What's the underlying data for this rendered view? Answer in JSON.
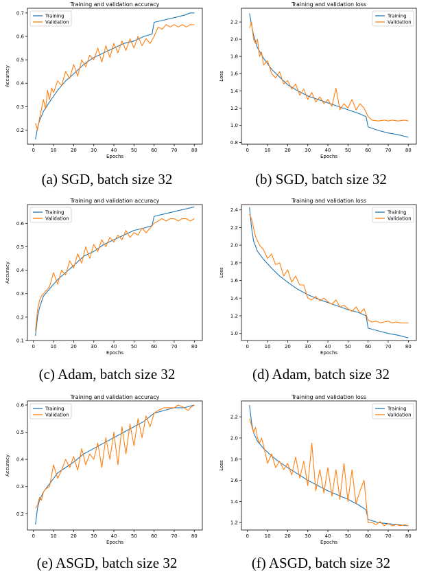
{
  "colors": {
    "training": "#1f77b4",
    "validation": "#ff7f0e"
  },
  "captions": [
    "(a) SGD, batch size 32",
    "(b) SGD, batch size 32",
    "(c) Adam, batch size 32",
    "(d) Adam, batch size 32",
    "(e) ASGD, batch size 32",
    "(f) ASGD, batch size 32"
  ],
  "chart_data": [
    {
      "type": "line",
      "title": "Training and validation accuracy",
      "xlabel": "Epochs",
      "ylabel": "Accuracy",
      "xlim": [
        -3,
        84
      ],
      "ylim": [
        0.14,
        0.72
      ],
      "xticks": [
        0,
        10,
        20,
        30,
        40,
        50,
        60,
        70,
        80
      ],
      "yticks": [
        0.2,
        0.3,
        0.4,
        0.5,
        0.6,
        0.7
      ],
      "legend": "top-left",
      "series": [
        {
          "name": "Training",
          "color": "training",
          "x": [
            1,
            2,
            3,
            5,
            8,
            12,
            16,
            20,
            25,
            30,
            35,
            40,
            45,
            50,
            55,
            59,
            60,
            65,
            70,
            75,
            78,
            80
          ],
          "y": [
            0.16,
            0.21,
            0.24,
            0.28,
            0.32,
            0.37,
            0.41,
            0.44,
            0.48,
            0.51,
            0.53,
            0.55,
            0.57,
            0.58,
            0.6,
            0.61,
            0.66,
            0.67,
            0.68,
            0.69,
            0.7,
            0.7
          ]
        },
        {
          "name": "Validation",
          "color": "validation",
          "x": [
            1,
            2,
            3,
            4,
            5,
            6,
            7,
            8,
            9,
            10,
            12,
            14,
            16,
            18,
            20,
            22,
            24,
            26,
            28,
            30,
            32,
            34,
            36,
            38,
            40,
            42,
            44,
            46,
            48,
            50,
            52,
            54,
            56,
            58,
            60,
            62,
            64,
            66,
            68,
            70,
            72,
            74,
            76,
            78,
            80
          ],
          "y": [
            0.23,
            0.2,
            0.25,
            0.29,
            0.33,
            0.29,
            0.37,
            0.33,
            0.38,
            0.36,
            0.41,
            0.39,
            0.45,
            0.42,
            0.48,
            0.43,
            0.5,
            0.47,
            0.52,
            0.5,
            0.55,
            0.49,
            0.56,
            0.51,
            0.57,
            0.53,
            0.58,
            0.54,
            0.59,
            0.55,
            0.6,
            0.56,
            0.59,
            0.57,
            0.6,
            0.64,
            0.63,
            0.65,
            0.64,
            0.65,
            0.64,
            0.65,
            0.64,
            0.65,
            0.65
          ]
        }
      ]
    },
    {
      "type": "line",
      "title": "Training and validation loss",
      "xlabel": "Epochs",
      "ylabel": "Loss",
      "xlim": [
        -3,
        84
      ],
      "ylim": [
        0.78,
        2.36
      ],
      "xticks": [
        0,
        10,
        20,
        30,
        40,
        50,
        60,
        70,
        80
      ],
      "yticks": [
        0.8,
        1.0,
        1.2,
        1.4,
        1.6,
        1.8,
        2.0,
        2.2
      ],
      "legend": "top-right",
      "series": [
        {
          "name": "Training",
          "color": "training",
          "x": [
            1,
            3,
            5,
            8,
            12,
            16,
            20,
            25,
            30,
            35,
            40,
            45,
            50,
            55,
            59,
            60,
            65,
            70,
            75,
            80
          ],
          "y": [
            2.3,
            2.05,
            1.9,
            1.78,
            1.65,
            1.56,
            1.47,
            1.4,
            1.34,
            1.3,
            1.26,
            1.22,
            1.18,
            1.14,
            1.1,
            0.98,
            0.94,
            0.91,
            0.89,
            0.86
          ]
        },
        {
          "name": "Validation",
          "color": "validation",
          "x": [
            1,
            2,
            3,
            4,
            5,
            6,
            7,
            8,
            10,
            12,
            14,
            16,
            18,
            20,
            22,
            24,
            26,
            28,
            30,
            32,
            34,
            36,
            38,
            40,
            42,
            44,
            46,
            48,
            50,
            52,
            54,
            56,
            58,
            60,
            62,
            65,
            68,
            70,
            72,
            75,
            78,
            80
          ],
          "y": [
            2.13,
            2.2,
            2.0,
            1.95,
            2.0,
            1.8,
            1.85,
            1.7,
            1.75,
            1.6,
            1.55,
            1.62,
            1.48,
            1.52,
            1.42,
            1.48,
            1.35,
            1.42,
            1.3,
            1.38,
            1.27,
            1.33,
            1.25,
            1.3,
            1.22,
            1.43,
            1.18,
            1.25,
            1.2,
            1.3,
            1.18,
            1.25,
            1.2,
            1.1,
            1.06,
            1.05,
            1.06,
            1.05,
            1.06,
            1.05,
            1.06,
            1.05
          ]
        }
      ]
    },
    {
      "type": "line",
      "title": "Training and validation accuracy",
      "xlabel": "Epochs",
      "ylabel": "Accuracy",
      "xlim": [
        -3,
        84
      ],
      "ylim": [
        0.1,
        0.68
      ],
      "xticks": [
        0,
        10,
        20,
        30,
        40,
        50,
        60,
        70,
        80
      ],
      "yticks": [
        0.1,
        0.2,
        0.3,
        0.4,
        0.5,
        0.6
      ],
      "legend": "top-left",
      "series": [
        {
          "name": "Training",
          "color": "training",
          "x": [
            1,
            2,
            3,
            5,
            8,
            12,
            16,
            20,
            25,
            30,
            35,
            40,
            45,
            50,
            55,
            59,
            60,
            65,
            70,
            75,
            80
          ],
          "y": [
            0.12,
            0.2,
            0.24,
            0.29,
            0.32,
            0.36,
            0.39,
            0.42,
            0.46,
            0.48,
            0.51,
            0.53,
            0.55,
            0.57,
            0.58,
            0.59,
            0.63,
            0.64,
            0.65,
            0.66,
            0.67
          ]
        },
        {
          "name": "Validation",
          "color": "validation",
          "x": [
            1,
            2,
            3,
            4,
            6,
            8,
            10,
            12,
            14,
            16,
            18,
            20,
            22,
            24,
            26,
            28,
            30,
            32,
            34,
            36,
            38,
            40,
            42,
            44,
            46,
            48,
            50,
            52,
            54,
            56,
            58,
            60,
            62,
            64,
            66,
            68,
            70,
            72,
            74,
            76,
            78,
            80
          ],
          "y": [
            0.14,
            0.23,
            0.27,
            0.29,
            0.31,
            0.33,
            0.39,
            0.34,
            0.4,
            0.38,
            0.44,
            0.41,
            0.47,
            0.43,
            0.5,
            0.45,
            0.51,
            0.48,
            0.53,
            0.5,
            0.54,
            0.52,
            0.55,
            0.53,
            0.57,
            0.54,
            0.56,
            0.55,
            0.58,
            0.56,
            0.58,
            0.6,
            0.61,
            0.62,
            0.61,
            0.62,
            0.62,
            0.61,
            0.62,
            0.62,
            0.61,
            0.62
          ]
        }
      ]
    },
    {
      "type": "line",
      "title": "Training and validation loss",
      "xlabel": "Epochs",
      "ylabel": "Loss",
      "xlim": [
        -3,
        84
      ],
      "ylim": [
        0.92,
        2.46
      ],
      "xticks": [
        0,
        10,
        20,
        30,
        40,
        50,
        60,
        70,
        80
      ],
      "yticks": [
        1.0,
        1.2,
        1.4,
        1.6,
        1.8,
        2.0,
        2.2,
        2.4
      ],
      "legend": "top-right",
      "series": [
        {
          "name": "Training",
          "color": "training",
          "x": [
            1,
            2,
            3,
            5,
            8,
            12,
            16,
            20,
            25,
            30,
            35,
            40,
            45,
            50,
            55,
            59,
            60,
            65,
            70,
            75,
            80
          ],
          "y": [
            2.43,
            2.2,
            2.05,
            1.93,
            1.84,
            1.74,
            1.65,
            1.58,
            1.5,
            1.44,
            1.39,
            1.35,
            1.31,
            1.27,
            1.24,
            1.2,
            1.06,
            1.03,
            1.0,
            0.98,
            0.95
          ]
        },
        {
          "name": "Validation",
          "color": "validation",
          "x": [
            1,
            2,
            3,
            4,
            5,
            6,
            8,
            10,
            12,
            14,
            16,
            18,
            20,
            22,
            24,
            26,
            28,
            30,
            32,
            34,
            36,
            38,
            40,
            42,
            44,
            46,
            48,
            50,
            52,
            54,
            56,
            58,
            60,
            62,
            64,
            66,
            68,
            70,
            72,
            74,
            76,
            78,
            80
          ],
          "y": [
            2.35,
            2.3,
            2.2,
            2.1,
            2.05,
            2.0,
            1.95,
            1.85,
            1.9,
            1.78,
            1.8,
            1.65,
            1.72,
            1.58,
            1.65,
            1.55,
            1.55,
            1.4,
            1.38,
            1.42,
            1.37,
            1.4,
            1.36,
            1.33,
            1.38,
            1.3,
            1.32,
            1.28,
            1.25,
            1.3,
            1.23,
            1.28,
            1.15,
            1.13,
            1.14,
            1.12,
            1.13,
            1.14,
            1.12,
            1.13,
            1.12,
            1.12,
            1.12
          ]
        }
      ]
    },
    {
      "type": "line",
      "title": "Training and validation accuracy",
      "xlabel": "Epochs",
      "ylabel": "Accuracy",
      "xlim": [
        -3,
        84
      ],
      "ylim": [
        0.14,
        0.615
      ],
      "xticks": [
        0,
        10,
        20,
        30,
        40,
        50,
        60,
        70,
        80
      ],
      "yticks": [
        0.2,
        0.3,
        0.4,
        0.5,
        0.6
      ],
      "legend": "top-left",
      "series": [
        {
          "name": "Training",
          "color": "training",
          "x": [
            1,
            2,
            3,
            5,
            8,
            12,
            16,
            20,
            25,
            30,
            35,
            40,
            45,
            50,
            55,
            60,
            65,
            70,
            75,
            80
          ],
          "y": [
            0.16,
            0.22,
            0.25,
            0.28,
            0.31,
            0.35,
            0.37,
            0.39,
            0.42,
            0.44,
            0.46,
            0.48,
            0.5,
            0.52,
            0.54,
            0.57,
            0.58,
            0.59,
            0.59,
            0.6
          ]
        },
        {
          "name": "Validation",
          "color": "validation",
          "x": [
            1,
            2,
            3,
            4,
            5,
            6,
            8,
            10,
            12,
            14,
            16,
            18,
            20,
            22,
            24,
            26,
            28,
            30,
            32,
            34,
            36,
            38,
            40,
            42,
            44,
            46,
            48,
            50,
            52,
            54,
            56,
            58,
            60,
            62,
            65,
            68,
            70,
            72,
            75,
            77,
            78,
            80
          ],
          "y": [
            0.22,
            0.23,
            0.26,
            0.25,
            0.28,
            0.29,
            0.3,
            0.38,
            0.33,
            0.36,
            0.4,
            0.37,
            0.41,
            0.36,
            0.44,
            0.38,
            0.42,
            0.4,
            0.46,
            0.37,
            0.48,
            0.4,
            0.5,
            0.38,
            0.52,
            0.42,
            0.53,
            0.45,
            0.55,
            0.48,
            0.56,
            0.52,
            0.57,
            0.58,
            0.59,
            0.59,
            0.59,
            0.6,
            0.59,
            0.58,
            0.59,
            0.6
          ]
        }
      ]
    },
    {
      "type": "line",
      "title": "Training and validation loss",
      "xlabel": "Epochs",
      "ylabel": "Loss",
      "xlim": [
        -3,
        84
      ],
      "ylim": [
        1.13,
        2.35
      ],
      "xticks": [
        0,
        10,
        20,
        30,
        40,
        50,
        60,
        70,
        80
      ],
      "yticks": [
        1.2,
        1.4,
        1.6,
        1.8,
        2.0,
        2.2
      ],
      "legend": "top-right",
      "series": [
        {
          "name": "Training",
          "color": "training",
          "x": [
            1,
            2,
            3,
            5,
            8,
            12,
            16,
            20,
            25,
            30,
            35,
            40,
            45,
            50,
            55,
            59,
            60,
            65,
            70,
            75,
            80
          ],
          "y": [
            2.31,
            2.15,
            2.05,
            1.97,
            1.9,
            1.83,
            1.77,
            1.72,
            1.66,
            1.6,
            1.55,
            1.5,
            1.46,
            1.42,
            1.37,
            1.32,
            1.23,
            1.2,
            1.19,
            1.18,
            1.17
          ]
        },
        {
          "name": "Validation",
          "color": "validation",
          "x": [
            1,
            2,
            3,
            4,
            5,
            6,
            7,
            8,
            10,
            12,
            14,
            16,
            18,
            20,
            22,
            24,
            26,
            28,
            30,
            32,
            34,
            36,
            38,
            40,
            42,
            44,
            46,
            48,
            50,
            52,
            54,
            56,
            58,
            60,
            62,
            64,
            66,
            68,
            70,
            72,
            74,
            76,
            78,
            80
          ],
          "y": [
            2.18,
            2.12,
            2.05,
            2.1,
            2.0,
            1.95,
            2.0,
            1.93,
            1.76,
            1.85,
            1.72,
            1.78,
            1.7,
            1.76,
            1.65,
            1.82,
            1.62,
            1.78,
            1.55,
            1.95,
            1.5,
            1.7,
            1.48,
            1.72,
            1.45,
            1.7,
            1.42,
            1.76,
            1.4,
            1.7,
            1.38,
            1.5,
            1.6,
            1.2,
            1.2,
            1.18,
            1.21,
            1.17,
            1.19,
            1.17,
            1.18,
            1.17,
            1.18,
            1.17
          ]
        }
      ]
    }
  ]
}
